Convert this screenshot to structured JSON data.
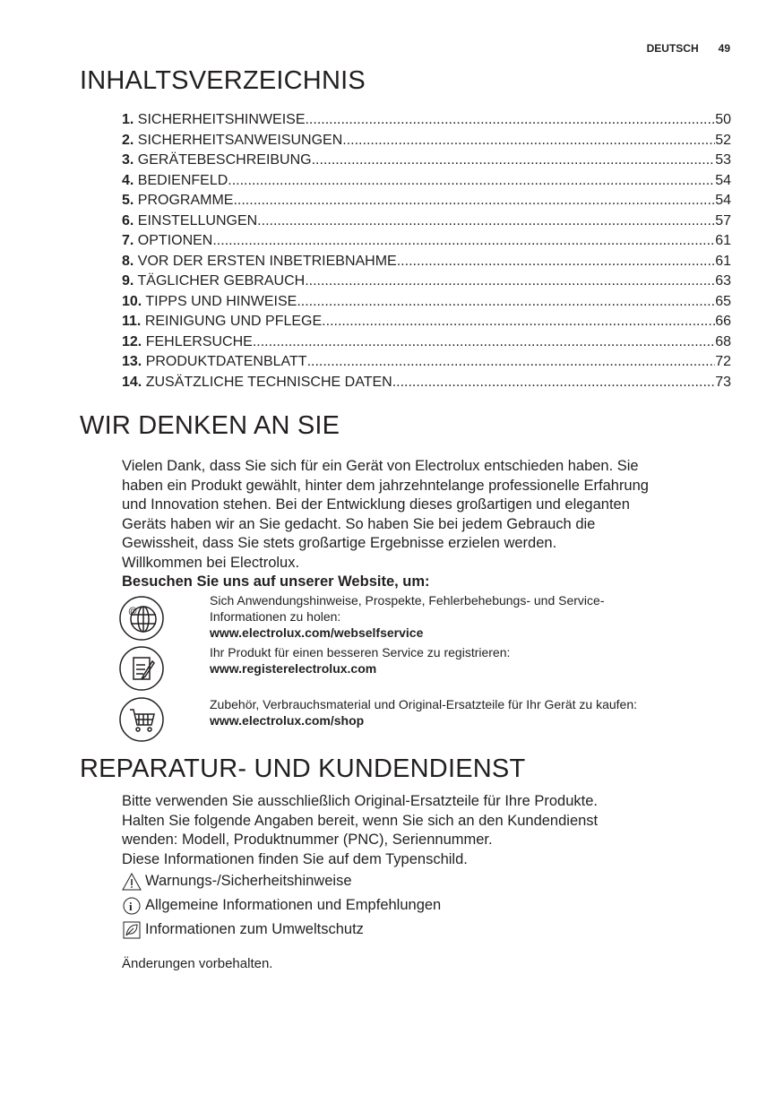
{
  "header": {
    "language": "DEUTSCH",
    "page_number": "49"
  },
  "toc": {
    "title": "INHALTSVERZEICHNIS",
    "items": [
      {
        "num": "1.",
        "label": "SICHERHEITSHINWEISE",
        "page": "50"
      },
      {
        "num": "2.",
        "label": "SICHERHEITSANWEISUNGEN",
        "page": "52"
      },
      {
        "num": "3.",
        "label": "GERÄTEBESCHREIBUNG",
        "page": "53"
      },
      {
        "num": "4.",
        "label": "BEDIENFELD",
        "page": "54"
      },
      {
        "num": "5.",
        "label": "PROGRAMME",
        "page": "54"
      },
      {
        "num": "6.",
        "label": "EINSTELLUNGEN",
        "page": "57"
      },
      {
        "num": "7.",
        "label": "OPTIONEN",
        "page": "61"
      },
      {
        "num": "8.",
        "label": "VOR DER ERSTEN INBETRIEBNAHME",
        "page": "61"
      },
      {
        "num": "9.",
        "label": "TÄGLICHER GEBRAUCH",
        "page": "63"
      },
      {
        "num": "10.",
        "label": "TIPPS UND HINWEISE",
        "page": "65"
      },
      {
        "num": "11.",
        "label": "REINIGUNG UND PFLEGE",
        "page": "66"
      },
      {
        "num": "12.",
        "label": "FEHLERSUCHE",
        "page": "68"
      },
      {
        "num": "13.",
        "label": "PRODUKTDATENBLATT",
        "page": "72"
      },
      {
        "num": "14.",
        "label": "ZUSÄTZLICHE TECHNISCHE DATEN",
        "page": "73"
      }
    ]
  },
  "welcome": {
    "title": "WIR DENKEN AN SIE",
    "lines": [
      "Vielen Dank, dass Sie sich für ein Gerät von Electrolux entschieden haben. Sie",
      "haben ein Produkt gewählt, hinter dem jahrzehntelange professionelle Erfahrung",
      "und Innovation stehen. Bei der Entwicklung dieses großartigen und eleganten",
      "Geräts haben wir an Sie gedacht. So haben Sie bei jedem Gebrauch die",
      "Gewissheit, dass Sie stets großartige Ergebnisse erzielen werden.",
      "Willkommen bei Electrolux."
    ],
    "visit": "Besuchen Sie uns auf unserer Website, um:",
    "links": [
      {
        "icon": "globe-at-icon",
        "text1": "Sich Anwendungshinweise, Prospekte, Fehlerbehebungs- und Service-",
        "text2": "Informationen zu holen:",
        "url": "www.electrolux.com/webselfservice"
      },
      {
        "icon": "register-document-icon",
        "text1": "Ihr Produkt für einen besseren Service zu registrieren:",
        "url": "www.registerelectrolux.com"
      },
      {
        "icon": "shopping-cart-icon",
        "text1": "Zubehör, Verbrauchsmaterial und Original-Ersatzteile für Ihr Gerät zu kaufen:",
        "url": "www.electrolux.com/shop"
      }
    ]
  },
  "service": {
    "title": "REPARATUR- UND KUNDENDIENST",
    "lines": [
      "Bitte verwenden Sie ausschließlich Original-Ersatzteile für Ihre Produkte.",
      "Halten Sie folgende Angaben bereit, wenn Sie sich an den Kundendienst",
      "wenden: Modell, Produktnummer (PNC), Seriennummer.",
      "Diese Informationen finden Sie auf dem Typenschild."
    ],
    "symbols": [
      {
        "icon": "warning-triangle-icon",
        "label": "Warnungs-/Sicherheitshinweise"
      },
      {
        "icon": "info-circle-icon",
        "label": "Allgemeine Informationen und Empfehlungen"
      },
      {
        "icon": "leaf-icon",
        "label": "Informationen zum Umweltschutz"
      }
    ],
    "note": "Änderungen vorbehalten."
  }
}
